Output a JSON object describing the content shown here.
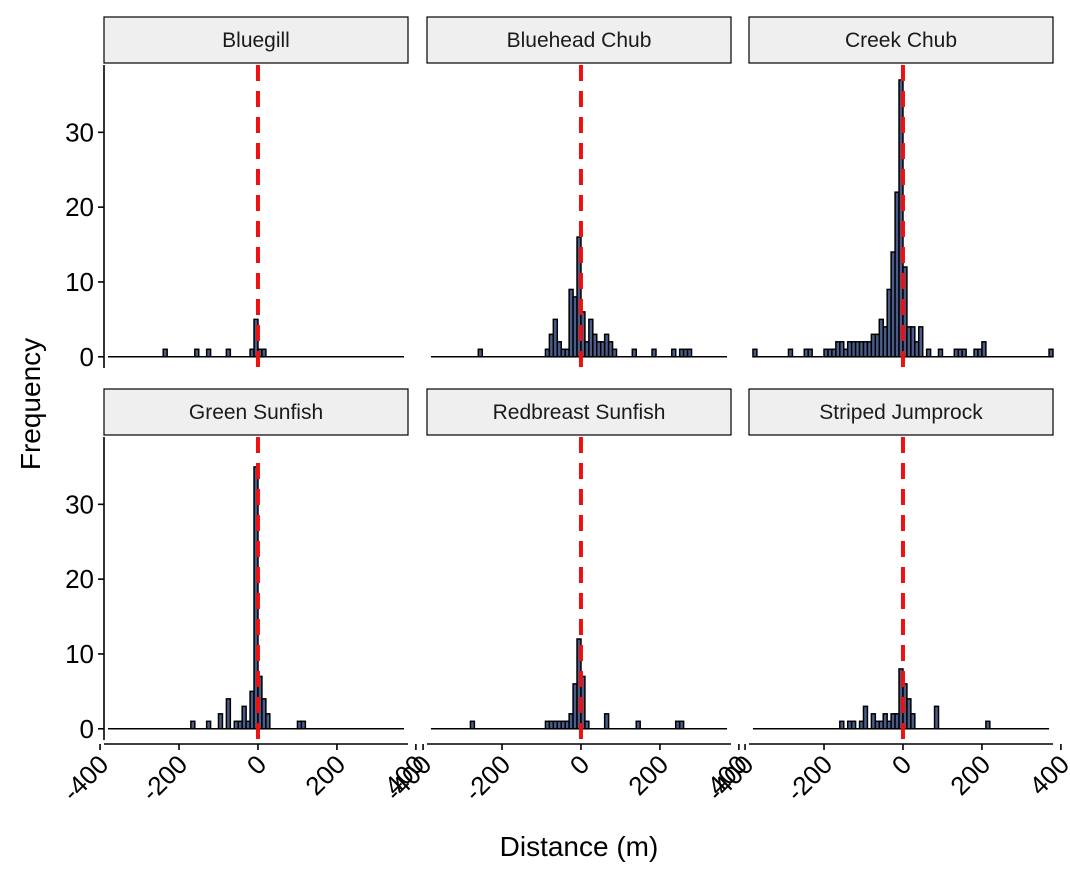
{
  "chart_data": {
    "type": "histogram",
    "xlabel": "Distance (m)",
    "ylabel": "Frequency",
    "xlim": [
      -390,
      380
    ],
    "ylim": [
      -1.5,
      39
    ],
    "x_ticks": [
      "-400",
      "-200",
      "0",
      "200",
      "400"
    ],
    "y_ticks": [
      "0",
      "10",
      "20",
      "30"
    ],
    "bin_width": 10,
    "reference_line": {
      "x": 0,
      "color": "#ee1111",
      "style": "dashed"
    },
    "panels": [
      {
        "name": "Bluegill",
        "bins": [
          [
            -240,
            1
          ],
          [
            -160,
            1
          ],
          [
            -130,
            1
          ],
          [
            -80,
            1
          ],
          [
            -20,
            1
          ],
          [
            -10,
            5
          ],
          [
            0,
            1
          ],
          [
            10,
            1
          ]
        ]
      },
      {
        "name": "Bluehead Chub",
        "bins": [
          [
            -260,
            1
          ],
          [
            -90,
            1
          ],
          [
            -80,
            3
          ],
          [
            -70,
            5
          ],
          [
            -60,
            2
          ],
          [
            -50,
            1
          ],
          [
            -40,
            1
          ],
          [
            -30,
            9
          ],
          [
            -20,
            8
          ],
          [
            -10,
            16
          ],
          [
            0,
            6
          ],
          [
            10,
            2
          ],
          [
            20,
            5
          ],
          [
            30,
            3
          ],
          [
            40,
            2
          ],
          [
            50,
            2
          ],
          [
            60,
            3
          ],
          [
            70,
            2
          ],
          [
            80,
            1
          ],
          [
            130,
            1
          ],
          [
            180,
            1
          ],
          [
            230,
            1
          ],
          [
            250,
            1
          ],
          [
            260,
            1
          ],
          [
            270,
            1
          ]
        ]
      },
      {
        "name": "Creek Chub",
        "bins": [
          [
            -380,
            1
          ],
          [
            -290,
            1
          ],
          [
            -250,
            1
          ],
          [
            -240,
            1
          ],
          [
            -200,
            1
          ],
          [
            -190,
            1
          ],
          [
            -180,
            1
          ],
          [
            -170,
            2
          ],
          [
            -160,
            2
          ],
          [
            -150,
            1
          ],
          [
            -140,
            2
          ],
          [
            -130,
            2
          ],
          [
            -120,
            2
          ],
          [
            -110,
            2
          ],
          [
            -100,
            2
          ],
          [
            -90,
            2
          ],
          [
            -80,
            3
          ],
          [
            -70,
            3
          ],
          [
            -60,
            5
          ],
          [
            -50,
            4
          ],
          [
            -40,
            9
          ],
          [
            -30,
            14
          ],
          [
            -20,
            22
          ],
          [
            -10,
            37
          ],
          [
            0,
            12
          ],
          [
            10,
            4
          ],
          [
            20,
            4
          ],
          [
            30,
            2
          ],
          [
            40,
            4
          ],
          [
            60,
            1
          ],
          [
            90,
            1
          ],
          [
            130,
            1
          ],
          [
            140,
            1
          ],
          [
            150,
            1
          ],
          [
            180,
            1
          ],
          [
            190,
            1
          ],
          [
            200,
            2
          ],
          [
            370,
            1
          ]
        ]
      },
      {
        "name": "Green Sunfish",
        "bins": [
          [
            -170,
            1
          ],
          [
            -130,
            1
          ],
          [
            -100,
            2
          ],
          [
            -80,
            4
          ],
          [
            -60,
            1
          ],
          [
            -50,
            1
          ],
          [
            -40,
            3
          ],
          [
            -30,
            1
          ],
          [
            -20,
            5
          ],
          [
            -10,
            35
          ],
          [
            0,
            7
          ],
          [
            10,
            4
          ],
          [
            20,
            2
          ],
          [
            100,
            1
          ],
          [
            110,
            1
          ]
        ]
      },
      {
        "name": "Redbreast Sunfish",
        "bins": [
          [
            -280,
            1
          ],
          [
            -90,
            1
          ],
          [
            -80,
            1
          ],
          [
            -70,
            1
          ],
          [
            -60,
            1
          ],
          [
            -50,
            1
          ],
          [
            -40,
            1
          ],
          [
            -30,
            2
          ],
          [
            -20,
            6
          ],
          [
            -10,
            12
          ],
          [
            0,
            7
          ],
          [
            10,
            1
          ],
          [
            60,
            2
          ],
          [
            140,
            1
          ],
          [
            240,
            1
          ],
          [
            250,
            1
          ]
        ]
      },
      {
        "name": "Striped Jumprock",
        "bins": [
          [
            -160,
            1
          ],
          [
            -140,
            1
          ],
          [
            -130,
            1
          ],
          [
            -110,
            1
          ],
          [
            -100,
            3
          ],
          [
            -80,
            2
          ],
          [
            -70,
            1
          ],
          [
            -60,
            1
          ],
          [
            -50,
            2
          ],
          [
            -40,
            1
          ],
          [
            -30,
            2
          ],
          [
            -20,
            2
          ],
          [
            -10,
            8
          ],
          [
            0,
            6
          ],
          [
            10,
            4
          ],
          [
            20,
            2
          ],
          [
            80,
            3
          ],
          [
            210,
            1
          ]
        ]
      }
    ]
  }
}
